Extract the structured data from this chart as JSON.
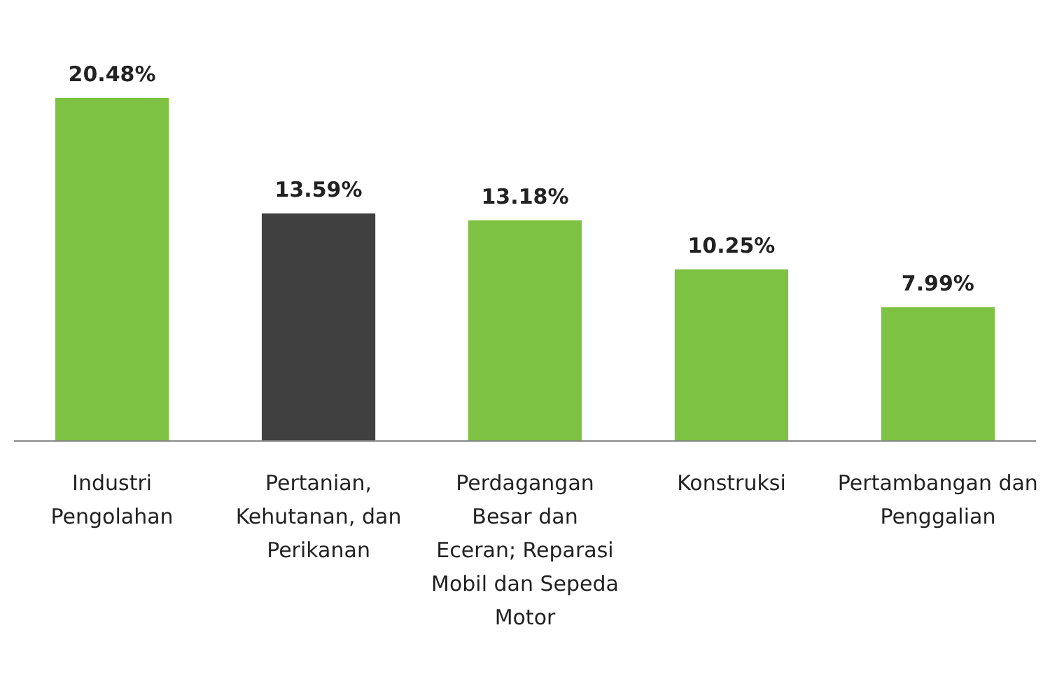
{
  "chart_data": {
    "type": "bar",
    "categories": [
      "Industri Pengolahan",
      "Pertanian, Kehutanan, dan Perikanan",
      "Perdagangan Besar dan Eceran; Reparasi Mobil dan Sepeda Motor",
      "Konstruksi",
      "Pertambangan dan Penggalian"
    ],
    "values": [
      20.48,
      13.59,
      13.18,
      10.25,
      7.99
    ],
    "colors": [
      "#7dc242",
      "#404040",
      "#7dc242",
      "#7dc242",
      "#7dc242"
    ],
    "value_labels": [
      "20.48%",
      "13.59%",
      "13.18%",
      "10.25%",
      "7.99%"
    ]
  }
}
